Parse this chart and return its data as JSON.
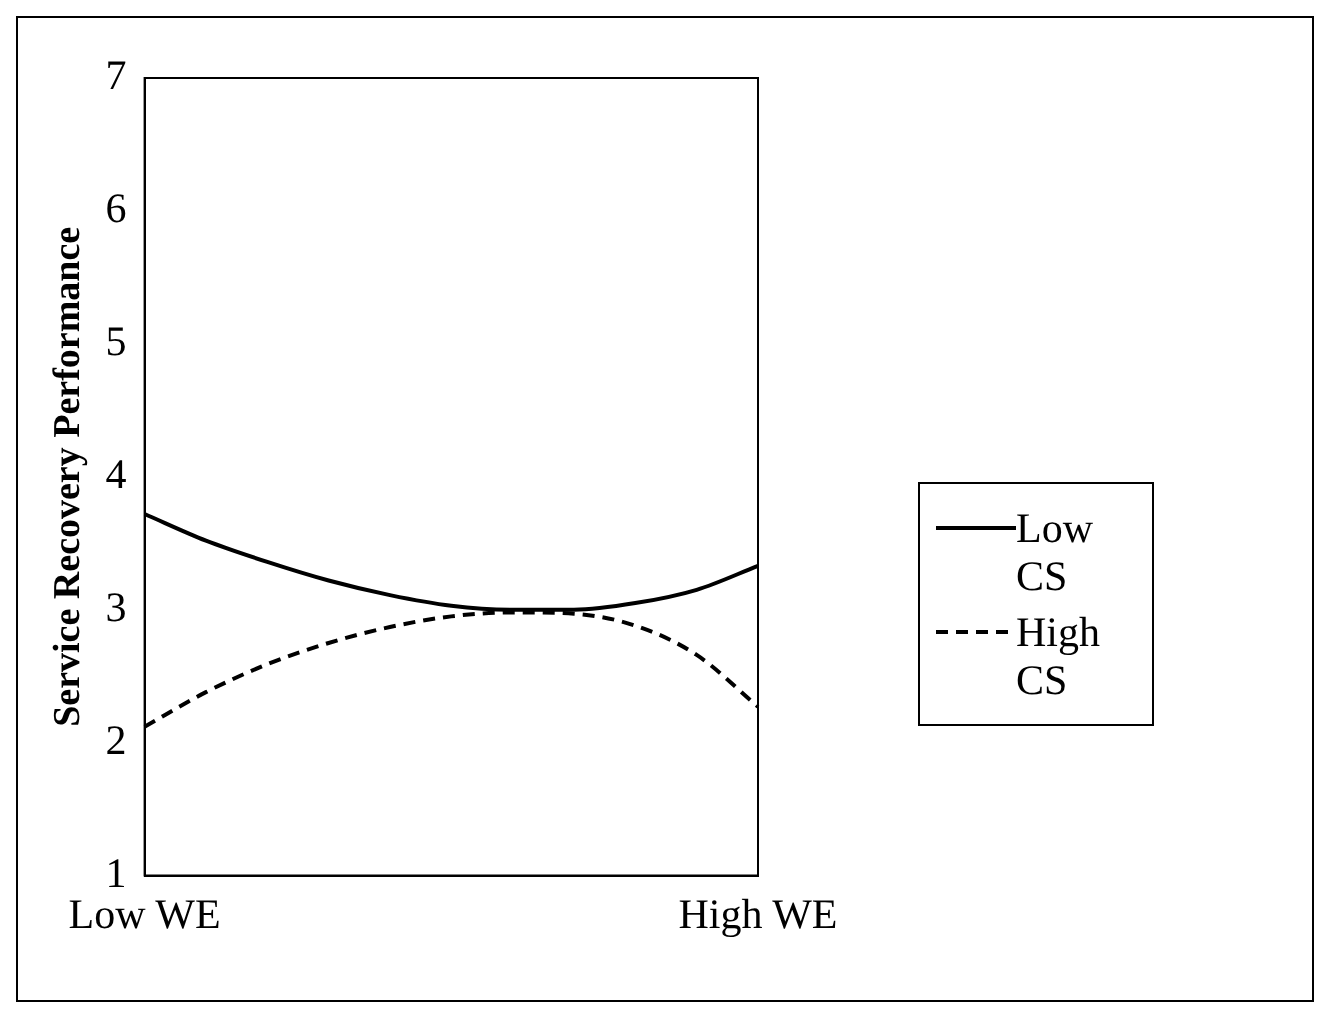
{
  "chart_data": {
    "type": "line",
    "ylabel": "Service Recovery Performance",
    "categories": [
      "Low WE",
      null,
      null,
      null,
      null,
      null,
      null,
      null,
      null,
      null,
      "High WE"
    ],
    "series": [
      {
        "name": "Low CS",
        "color": "#000000",
        "line_style": "solid",
        "values": [
          3.72,
          3.52,
          3.36,
          3.22,
          3.11,
          3.03,
          3.0,
          3.0,
          3.05,
          3.15,
          3.33
        ]
      },
      {
        "name": "High CS",
        "color": "#000000",
        "line_style": "dashed",
        "values": [
          2.12,
          2.38,
          2.59,
          2.75,
          2.87,
          2.95,
          2.98,
          2.97,
          2.88,
          2.66,
          2.27
        ]
      }
    ],
    "ylim": [
      1,
      7
    ],
    "yticks": [
      1,
      2,
      3,
      4,
      5,
      6,
      7
    ],
    "grid": false,
    "legend": "right",
    "marker": "none"
  }
}
